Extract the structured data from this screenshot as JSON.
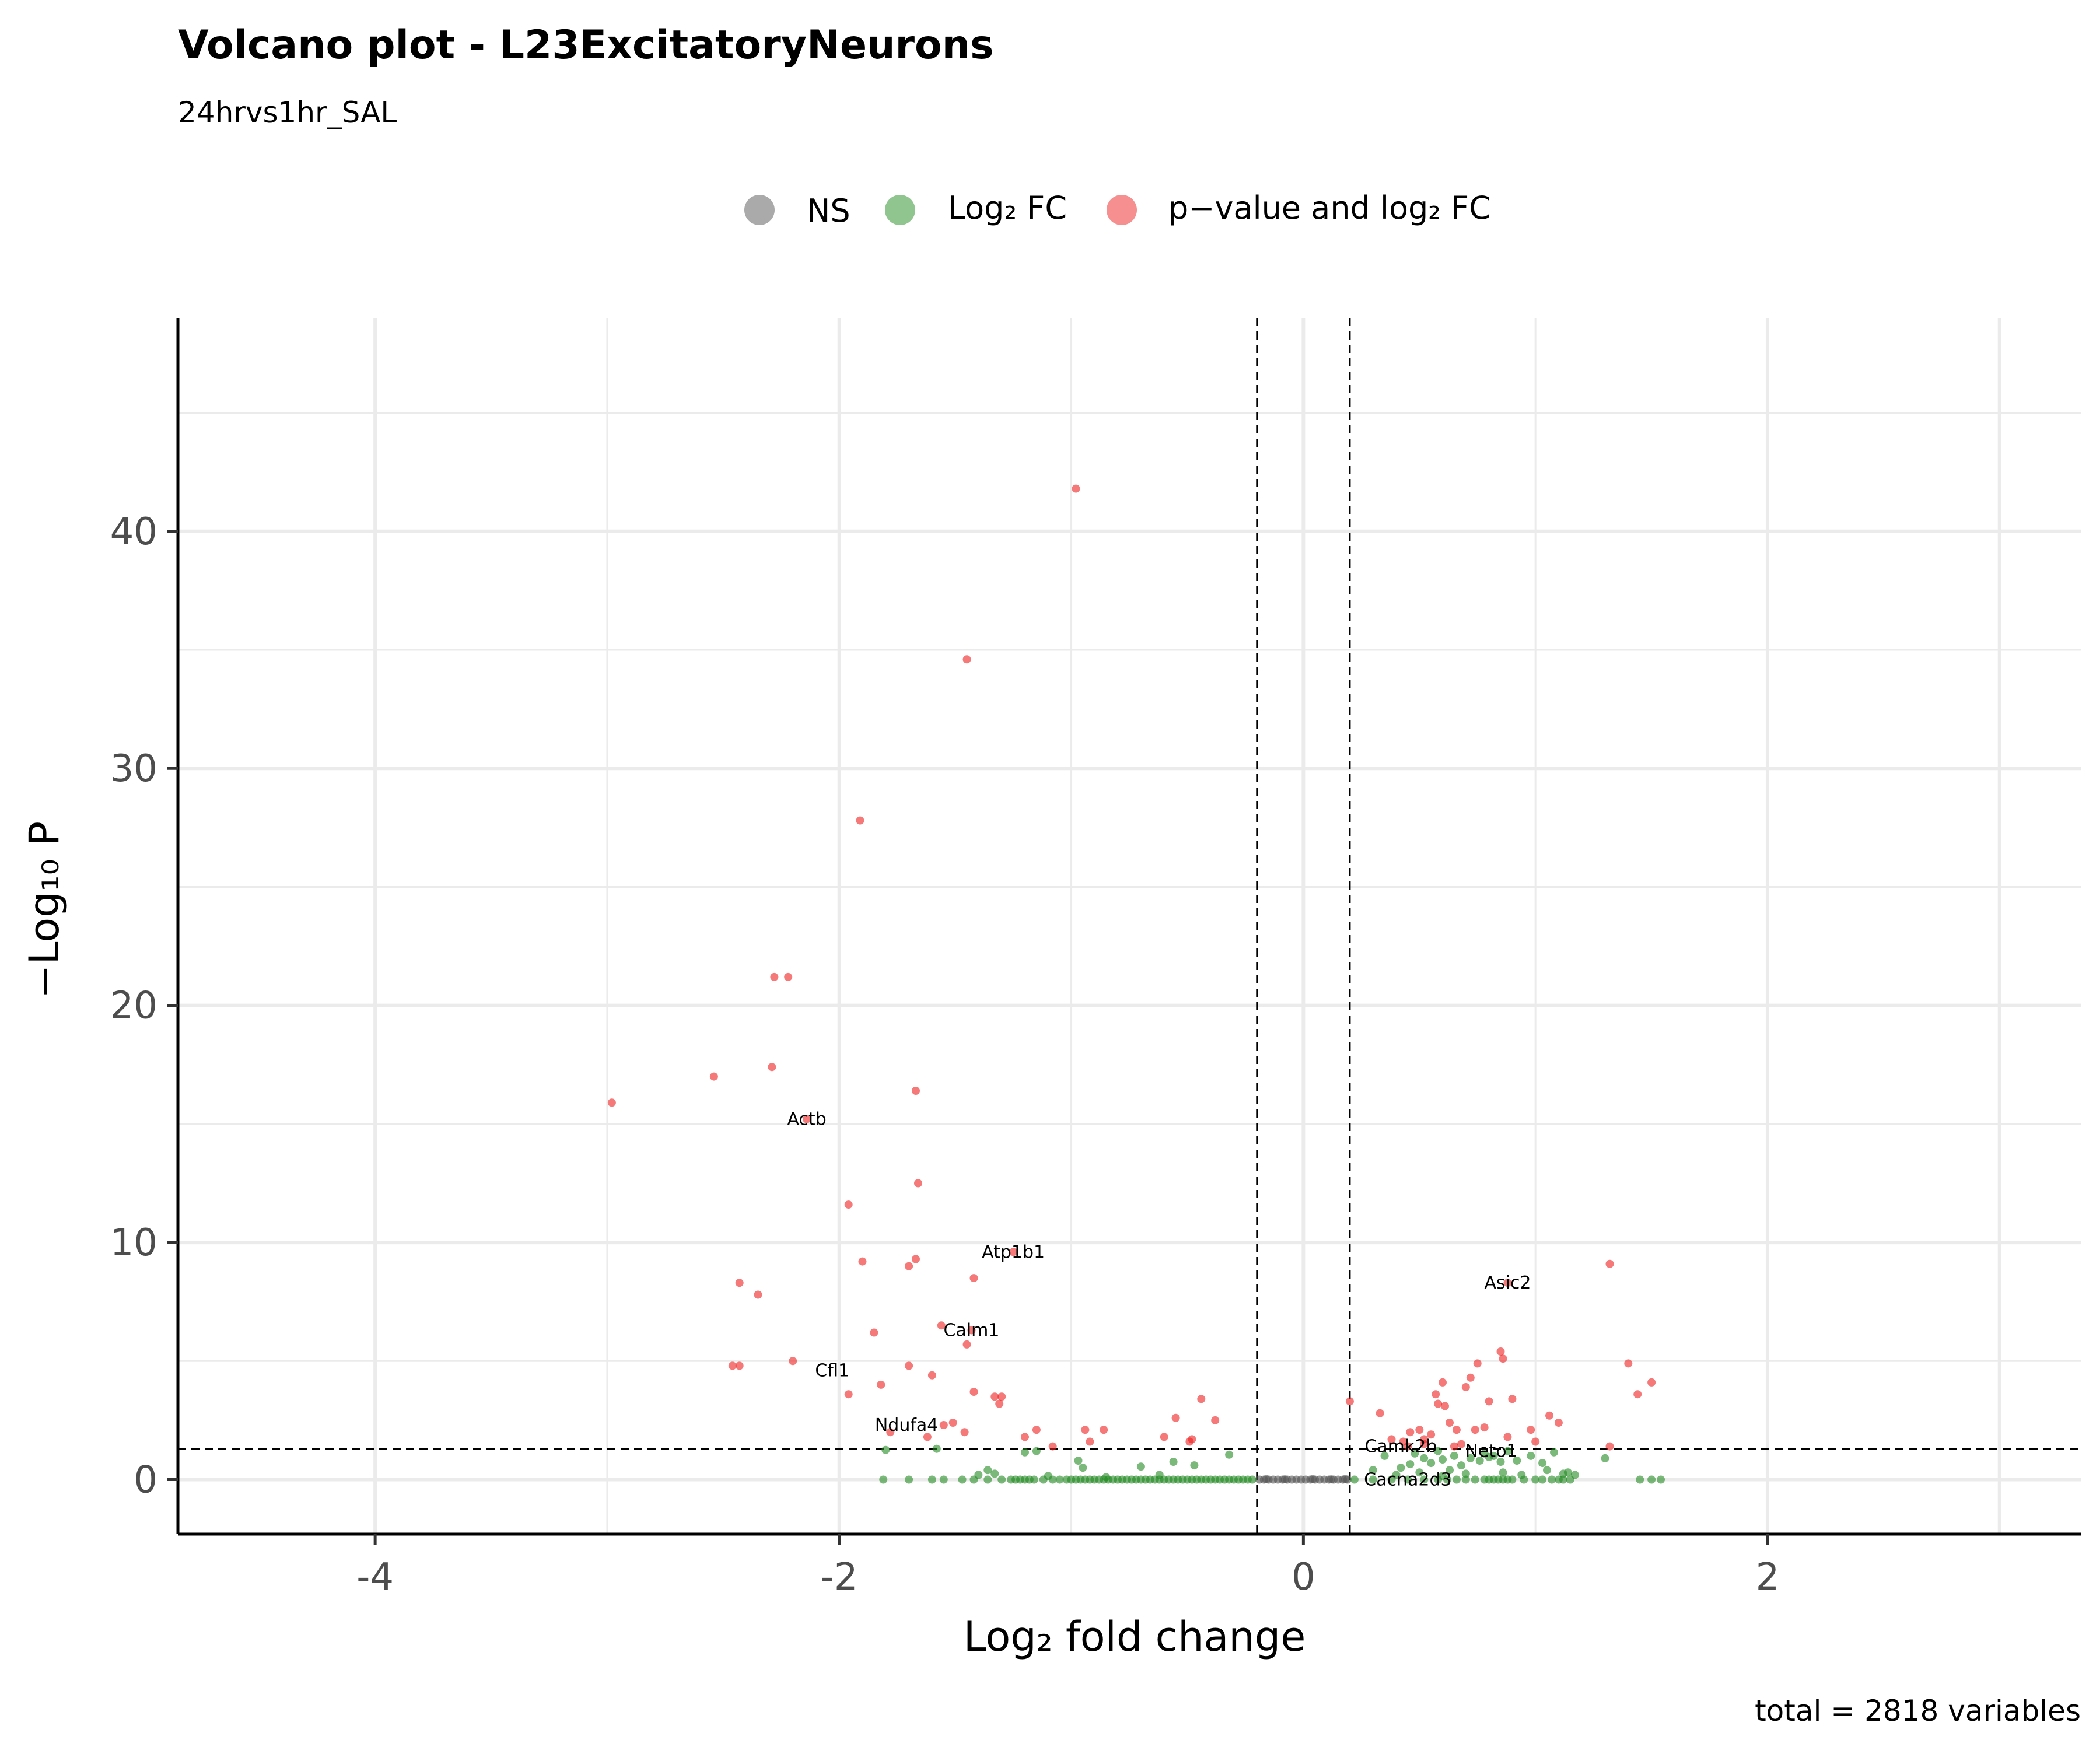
{
  "chart_data": {
    "type": "scatter",
    "title": "Volcano plot - L23ExcitatoryNeurons",
    "subtitle": "24hrvs1hr_SAL",
    "xlabel": "Log₂ fold change",
    "ylabel": "−Log₁₀ P",
    "caption": "total = 2818 variables",
    "xlim": [
      -4.85,
      3.35
    ],
    "ylim": [
      -2.3,
      49.0
    ],
    "x_ticks": [
      -4,
      -2,
      0,
      2
    ],
    "x_tick_labels": [
      "-4",
      "-2",
      "0",
      "2"
    ],
    "y_ticks": [
      0,
      10,
      20,
      30,
      40
    ],
    "y_tick_labels": [
      "0",
      "10",
      "20",
      "30",
      "40"
    ],
    "grid": true,
    "fc_cutoff": 0.2,
    "p_cutoff_log10": 1.3,
    "legend": {
      "position": "top",
      "entries": [
        {
          "key": "NS",
          "label": "NS",
          "color": "#555555"
        },
        {
          "key": "FC",
          "label": "Log₂ FC",
          "color": "#228b22"
        },
        {
          "key": "P_FC",
          "label": "p−value and log₂ FC",
          "color": "#ee2020"
        }
      ]
    },
    "series": [
      {
        "key": "NS",
        "color": "#555555",
        "points": [
          [
            -0.19,
            0
          ],
          [
            -0.17,
            0
          ],
          [
            -0.15,
            0
          ],
          [
            -0.13,
            0
          ],
          [
            -0.11,
            0
          ],
          [
            -0.09,
            0
          ],
          [
            -0.07,
            0
          ],
          [
            -0.05,
            0
          ],
          [
            -0.03,
            0
          ],
          [
            -0.01,
            0
          ],
          [
            0.01,
            0
          ],
          [
            0.03,
            0
          ],
          [
            0.05,
            0
          ],
          [
            0.07,
            0
          ],
          [
            0.09,
            0
          ],
          [
            0.11,
            0
          ],
          [
            0.13,
            0
          ],
          [
            0.15,
            0
          ],
          [
            0.17,
            0
          ],
          [
            0.19,
            0
          ],
          [
            -0.16,
            0.02
          ],
          [
            -0.08,
            0.01
          ],
          [
            0.04,
            0.02
          ],
          [
            0.12,
            0.01
          ],
          [
            0.18,
            0.02
          ]
        ]
      },
      {
        "key": "FC",
        "color": "#228b22",
        "points": [
          [
            -1.81,
            0
          ],
          [
            -1.7,
            0
          ],
          [
            -1.6,
            0
          ],
          [
            -1.55,
            0
          ],
          [
            -1.47,
            0
          ],
          [
            -1.42,
            0
          ],
          [
            -1.36,
            0
          ],
          [
            -1.3,
            0
          ],
          [
            -1.26,
            0
          ],
          [
            -1.24,
            0
          ],
          [
            -1.22,
            0
          ],
          [
            -1.2,
            0
          ],
          [
            -1.18,
            0
          ],
          [
            -1.16,
            0
          ],
          [
            -1.12,
            0
          ],
          [
            -1.08,
            0
          ],
          [
            -1.05,
            0
          ],
          [
            -1.02,
            0
          ],
          [
            -1.0,
            0
          ],
          [
            -0.98,
            0
          ],
          [
            -0.96,
            0
          ],
          [
            -0.94,
            0
          ],
          [
            -0.92,
            0
          ],
          [
            -0.9,
            0
          ],
          [
            -0.88,
            0
          ],
          [
            -0.86,
            0
          ],
          [
            -0.84,
            0
          ],
          [
            -0.82,
            0
          ],
          [
            -0.8,
            0
          ],
          [
            -0.78,
            0
          ],
          [
            -0.76,
            0
          ],
          [
            -0.74,
            0
          ],
          [
            -0.72,
            0
          ],
          [
            -0.7,
            0
          ],
          [
            -0.68,
            0
          ],
          [
            -0.66,
            0
          ],
          [
            -0.64,
            0
          ],
          [
            -0.62,
            0
          ],
          [
            -0.6,
            0
          ],
          [
            -0.58,
            0
          ],
          [
            -0.56,
            0
          ],
          [
            -0.54,
            0
          ],
          [
            -0.52,
            0
          ],
          [
            -0.5,
            0
          ],
          [
            -0.48,
            0
          ],
          [
            -0.46,
            0
          ],
          [
            -0.44,
            0
          ],
          [
            -0.42,
            0
          ],
          [
            -0.4,
            0
          ],
          [
            -0.38,
            0
          ],
          [
            -0.36,
            0
          ],
          [
            -0.34,
            0
          ],
          [
            -0.32,
            0
          ],
          [
            -0.3,
            0
          ],
          [
            -0.28,
            0
          ],
          [
            -0.26,
            0
          ],
          [
            -0.24,
            0
          ],
          [
            -0.22,
            0
          ],
          [
            -1.8,
            1.25
          ],
          [
            -1.58,
            1.3
          ],
          [
            -1.2,
            1.15
          ],
          [
            -1.15,
            1.2
          ],
          [
            -0.97,
            0.8
          ],
          [
            -0.95,
            0.5
          ],
          [
            -0.56,
            0.75
          ],
          [
            -0.47,
            0.6
          ],
          [
            -0.32,
            1.05
          ],
          [
            -0.7,
            0.55
          ],
          [
            -1.36,
            0.4
          ],
          [
            -1.33,
            0.25
          ],
          [
            -1.4,
            0.2
          ],
          [
            -1.1,
            0.15
          ],
          [
            -0.85,
            0.1
          ],
          [
            -0.62,
            0.2
          ],
          [
            0.22,
            0
          ],
          [
            0.3,
            0
          ],
          [
            0.38,
            0
          ],
          [
            0.45,
            0
          ],
          [
            0.52,
            0
          ],
          [
            0.58,
            0
          ],
          [
            0.62,
            0
          ],
          [
            0.66,
            0
          ],
          [
            0.7,
            0
          ],
          [
            0.74,
            0
          ],
          [
            0.78,
            0
          ],
          [
            0.8,
            0
          ],
          [
            0.82,
            0
          ],
          [
            0.84,
            0
          ],
          [
            0.86,
            0
          ],
          [
            0.88,
            0
          ],
          [
            0.9,
            0
          ],
          [
            0.95,
            0
          ],
          [
            1.0,
            0
          ],
          [
            1.03,
            0
          ],
          [
            1.07,
            0
          ],
          [
            1.1,
            0
          ],
          [
            1.12,
            0
          ],
          [
            1.15,
            0
          ],
          [
            1.45,
            0
          ],
          [
            1.5,
            0
          ],
          [
            1.54,
            0
          ],
          [
            0.35,
            1.0
          ],
          [
            0.42,
            0.5
          ],
          [
            0.48,
            1.1
          ],
          [
            0.52,
            0.9
          ],
          [
            0.55,
            0.7
          ],
          [
            0.58,
            1.2
          ],
          [
            0.6,
            0.85
          ],
          [
            0.63,
            0.4
          ],
          [
            0.65,
            1.0
          ],
          [
            0.68,
            0.6
          ],
          [
            0.72,
            0.9
          ],
          [
            0.76,
            0.8
          ],
          [
            0.78,
            1.1
          ],
          [
            0.8,
            0.95
          ],
          [
            0.82,
            1.0
          ],
          [
            0.85,
            0.75
          ],
          [
            0.88,
            1.2
          ],
          [
            0.92,
            0.8
          ],
          [
            0.98,
            1.0
          ],
          [
            1.03,
            0.7
          ],
          [
            1.08,
            1.15
          ],
          [
            1.12,
            0.25
          ],
          [
            1.14,
            0.3
          ],
          [
            1.17,
            0.2
          ],
          [
            1.3,
            0.9
          ],
          [
            0.4,
            0.2
          ],
          [
            0.5,
            0.3
          ],
          [
            0.6,
            0.15
          ],
          [
            0.7,
            0.25
          ],
          [
            0.86,
            0.3
          ],
          [
            0.94,
            0.2
          ],
          [
            1.05,
            0.4
          ],
          [
            0.3,
            0.4
          ],
          [
            0.46,
            0.65
          ]
        ]
      },
      {
        "key": "P_FC",
        "color": "#ee2020",
        "points": [
          [
            -0.98,
            41.8
          ],
          [
            -1.45,
            34.6
          ],
          [
            -1.91,
            27.8
          ],
          [
            -2.28,
            21.2
          ],
          [
            -2.22,
            21.2
          ],
          [
            -2.54,
            17.0
          ],
          [
            -2.29,
            17.4
          ],
          [
            -2.98,
            15.9
          ],
          [
            -1.67,
            16.4
          ],
          [
            -2.14,
            15.2
          ],
          [
            -1.66,
            12.5
          ],
          [
            -1.96,
            11.6
          ],
          [
            -1.25,
            9.6
          ],
          [
            -1.9,
            9.2
          ],
          [
            -1.67,
            9.3
          ],
          [
            -1.7,
            9.0
          ],
          [
            -1.42,
            8.5
          ],
          [
            -2.43,
            8.3
          ],
          [
            -2.35,
            7.8
          ],
          [
            -1.56,
            6.5
          ],
          [
            -1.43,
            6.3
          ],
          [
            -1.85,
            6.2
          ],
          [
            -1.45,
            5.7
          ],
          [
            -2.2,
            5.0
          ],
          [
            -2.46,
            4.8
          ],
          [
            -2.43,
            4.8
          ],
          [
            -1.7,
            4.8
          ],
          [
            -1.6,
            4.4
          ],
          [
            -1.82,
            4.0
          ],
          [
            -1.96,
            3.6
          ],
          [
            -1.42,
            3.7
          ],
          [
            -1.33,
            3.5
          ],
          [
            -1.3,
            3.5
          ],
          [
            -1.31,
            3.2
          ],
          [
            -0.44,
            3.4
          ],
          [
            -0.55,
            2.6
          ],
          [
            -0.38,
            2.5
          ],
          [
            -1.51,
            2.4
          ],
          [
            -1.55,
            2.3
          ],
          [
            -1.46,
            2.0
          ],
          [
            -1.15,
            2.1
          ],
          [
            -0.94,
            2.1
          ],
          [
            -0.86,
            2.1
          ],
          [
            -1.2,
            1.8
          ],
          [
            -0.92,
            1.6
          ],
          [
            -0.6,
            1.8
          ],
          [
            -0.49,
            1.6
          ],
          [
            -0.48,
            1.7
          ],
          [
            -1.62,
            1.8
          ],
          [
            -1.78,
            2.0
          ],
          [
            -1.08,
            1.4
          ],
          [
            0.2,
            3.3
          ],
          [
            0.33,
            2.8
          ],
          [
            0.43,
            1.6
          ],
          [
            0.46,
            2.0
          ],
          [
            0.5,
            2.1
          ],
          [
            0.52,
            1.7
          ],
          [
            0.55,
            1.9
          ],
          [
            0.57,
            3.6
          ],
          [
            0.6,
            4.1
          ],
          [
            0.58,
            3.2
          ],
          [
            0.61,
            3.1
          ],
          [
            0.63,
            2.4
          ],
          [
            0.66,
            2.1
          ],
          [
            0.7,
            3.9
          ],
          [
            0.72,
            4.3
          ],
          [
            0.75,
            4.9
          ],
          [
            0.74,
            2.1
          ],
          [
            0.78,
            2.2
          ],
          [
            0.8,
            3.3
          ],
          [
            0.85,
            5.4
          ],
          [
            0.86,
            5.1
          ],
          [
            0.88,
            1.8
          ],
          [
            0.9,
            3.4
          ],
          [
            0.98,
            2.1
          ],
          [
            1.0,
            1.6
          ],
          [
            1.06,
            2.7
          ],
          [
            1.1,
            2.4
          ],
          [
            1.32,
            9.1
          ],
          [
            1.4,
            4.9
          ],
          [
            1.44,
            3.6
          ],
          [
            1.5,
            4.1
          ],
          [
            0.88,
            8.3
          ],
          [
            0.68,
            1.5
          ],
          [
            0.65,
            1.4
          ],
          [
            0.52,
            1.5
          ],
          [
            0.45,
            1.4
          ],
          [
            1.32,
            1.4
          ],
          [
            0.38,
            1.7
          ]
        ]
      }
    ],
    "annotations": [
      {
        "label": "Actb",
        "x": -2.14,
        "y": 15.2
      },
      {
        "label": "Atp1b1",
        "x": -1.25,
        "y": 9.6
      },
      {
        "label": "Calm1",
        "x": -1.43,
        "y": 6.3
      },
      {
        "label": "Cfl1",
        "x": -2.03,
        "y": 4.6
      },
      {
        "label": "Ndufa4",
        "x": -1.71,
        "y": 2.3
      },
      {
        "label": "Asic2",
        "x": 0.88,
        "y": 8.3
      },
      {
        "label": "Camk2b",
        "x": 0.42,
        "y": 1.4
      },
      {
        "label": "Neto1",
        "x": 0.81,
        "y": 1.2
      },
      {
        "label": "Cacna2d3",
        "x": 0.45,
        "y": 0.0
      }
    ]
  }
}
